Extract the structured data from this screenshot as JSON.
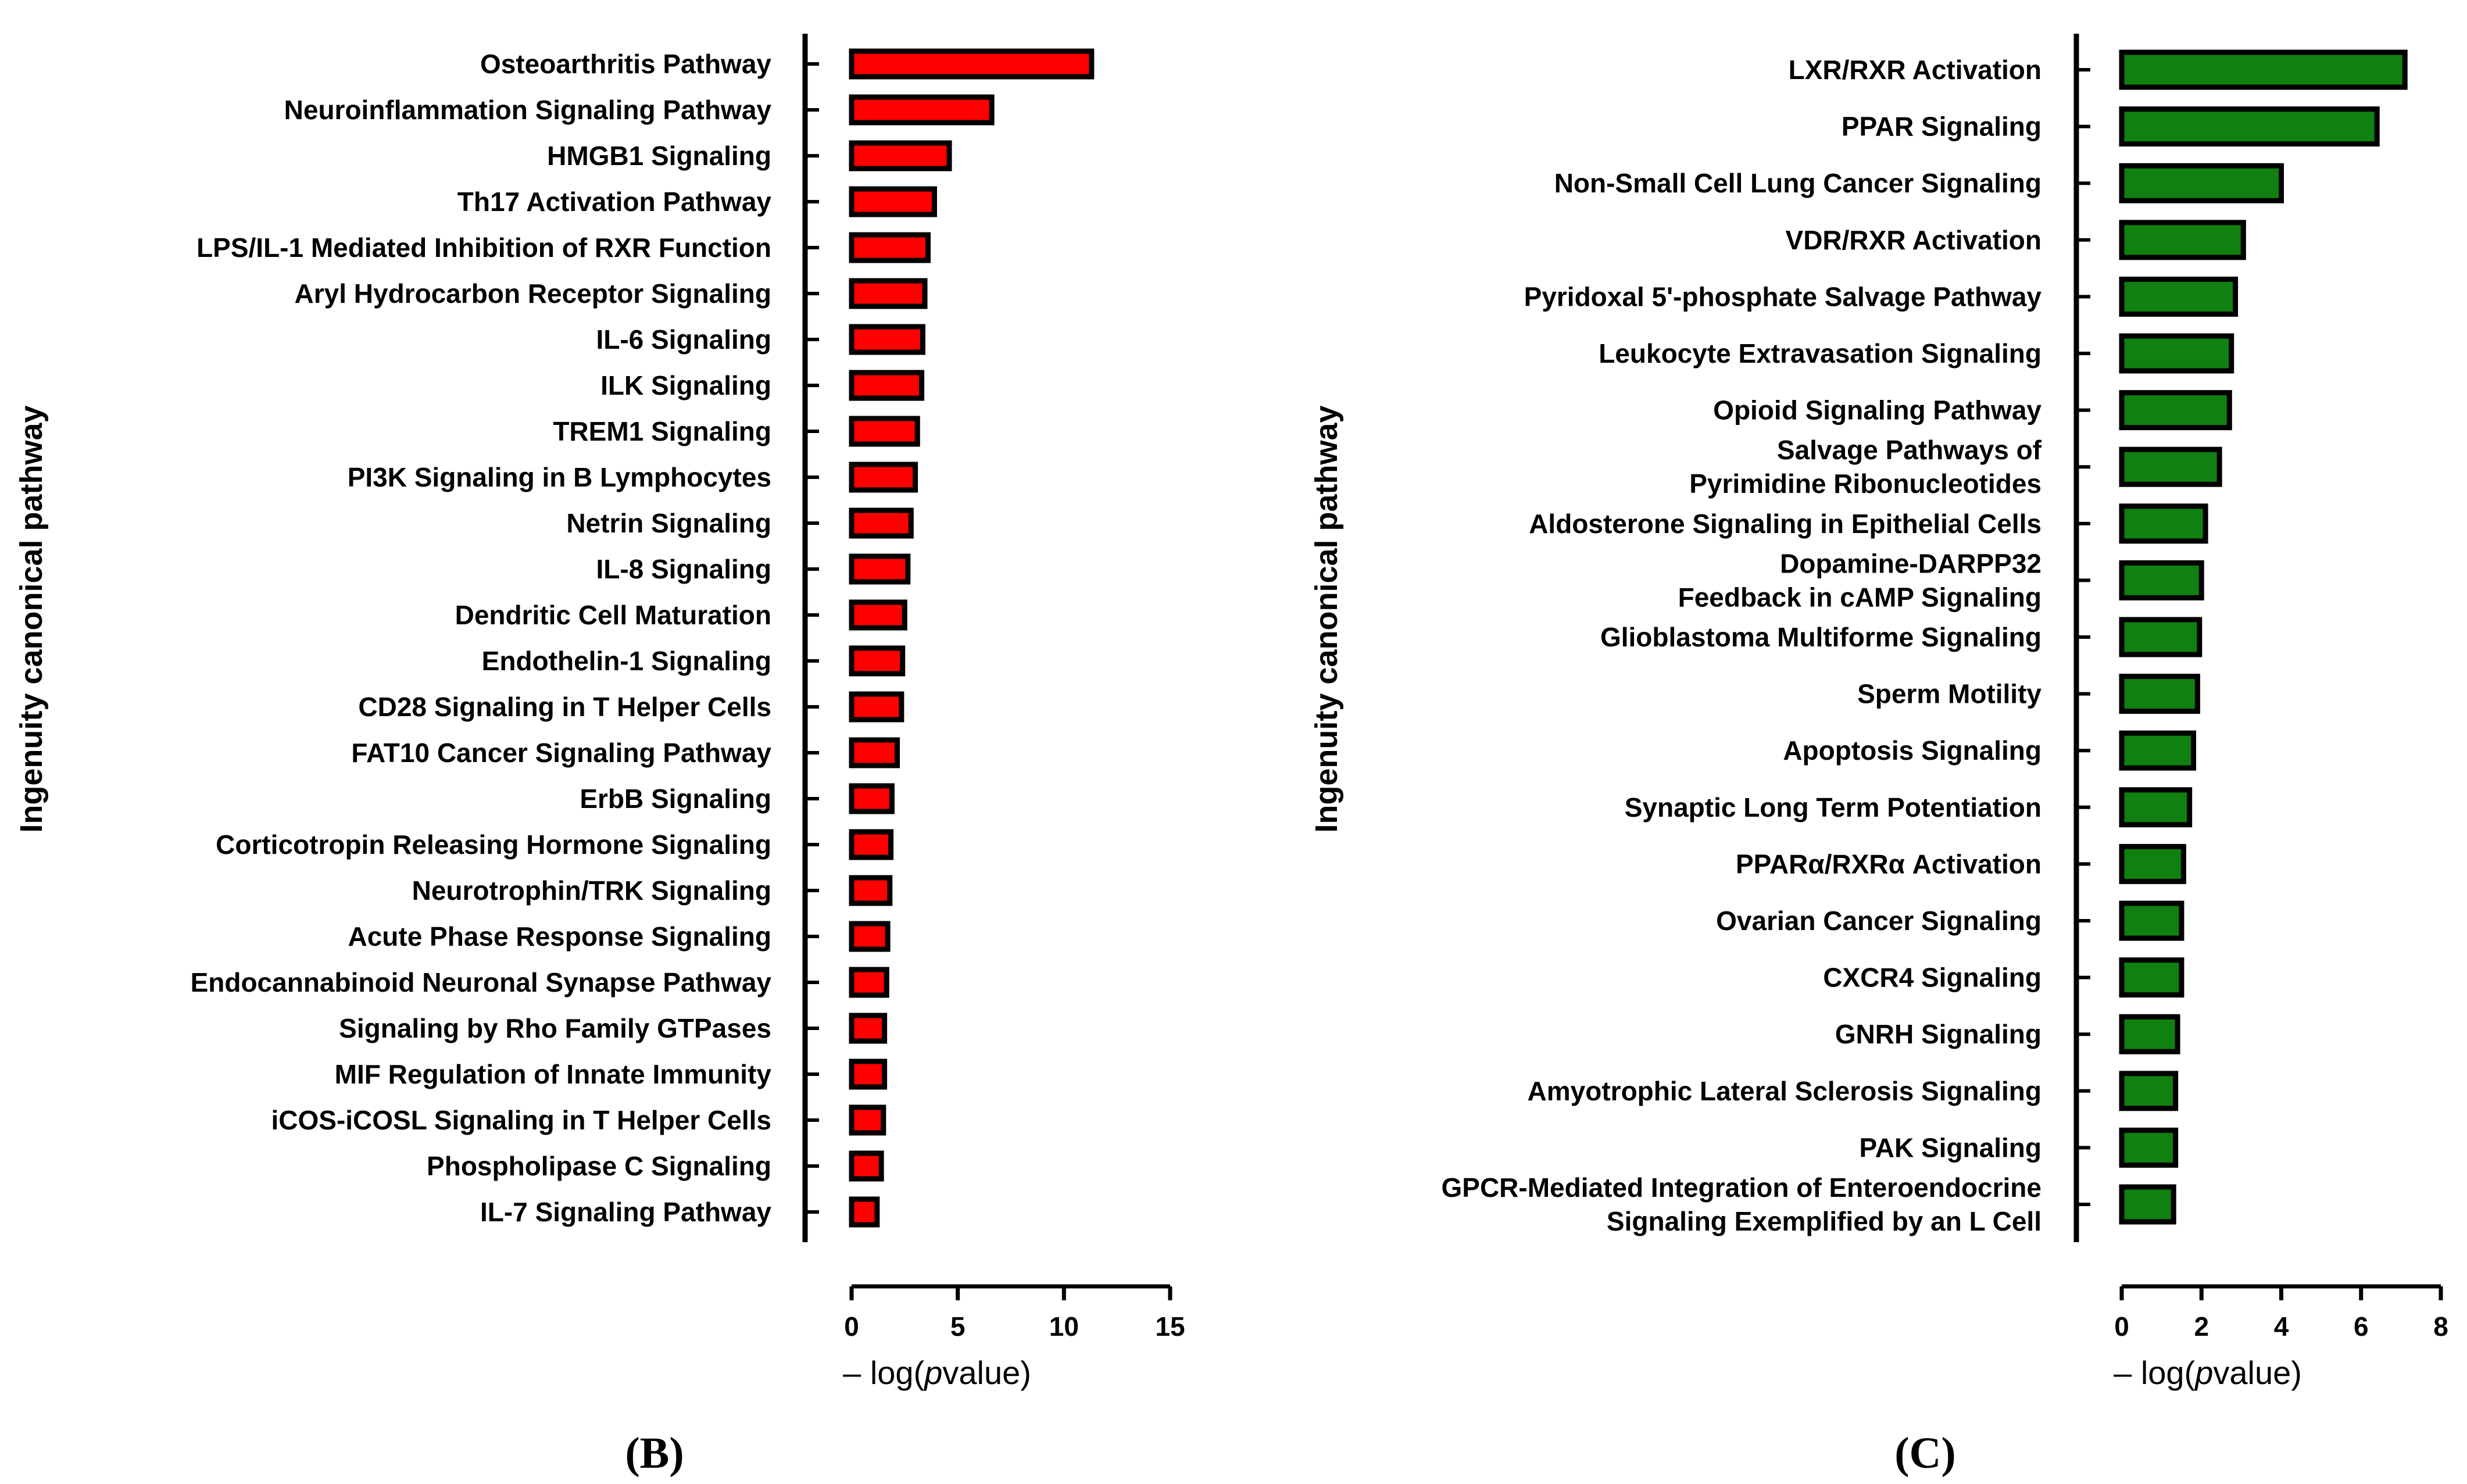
{
  "chart_data": [
    {
      "type": "bar",
      "orientation": "horizontal",
      "panel_label": "(B)",
      "ylabel": "Ingenuity canonical pathway",
      "xlabel_prefix": "– log(",
      "xlabel_italic": "p",
      "xlabel_suffix": "value)",
      "xlim": [
        0,
        15
      ],
      "xticks": [
        0,
        5,
        10,
        15
      ],
      "bar_color": "#ff0000",
      "categories": [
        [
          "Osteoarthritis Pathway"
        ],
        [
          "Neuroinflammation Signaling Pathway"
        ],
        [
          "HMGB1 Signaling"
        ],
        [
          "Th17 Activation Pathway"
        ],
        [
          "LPS/IL-1 Mediated Inhibition of RXR Function"
        ],
        [
          "Aryl Hydrocarbon Receptor Signaling"
        ],
        [
          "IL-6 Signaling"
        ],
        [
          "ILK Signaling"
        ],
        [
          "TREM1 Signaling"
        ],
        [
          "PI3K Signaling in B Lymphocytes"
        ],
        [
          "Netrin Signaling"
        ],
        [
          "IL-8 Signaling"
        ],
        [
          "Dendritic Cell Maturation"
        ],
        [
          "Endothelin-1 Signaling"
        ],
        [
          "CD28 Signaling in T Helper Cells"
        ],
        [
          "FAT10 Cancer Signaling Pathway"
        ],
        [
          "ErbB Signaling"
        ],
        [
          "Corticotropin Releasing Hormone Signaling"
        ],
        [
          "Neurotrophin/TRK Signaling"
        ],
        [
          "Acute Phase Response Signaling"
        ],
        [
          "Endocannabinoid Neuronal Synapse Pathway"
        ],
        [
          "Signaling by Rho Family GTPases"
        ],
        [
          "MIF Regulation of Innate Immunity"
        ],
        [
          "iCOS-iCOSL Signaling in T Helper Cells"
        ],
        [
          "Phospholipase C Signaling"
        ],
        [
          "IL-7 Signaling Pathway"
        ]
      ],
      "values": [
        11.3,
        6.6,
        4.6,
        3.9,
        3.6,
        3.45,
        3.35,
        3.3,
        3.1,
        3.0,
        2.8,
        2.65,
        2.5,
        2.4,
        2.35,
        2.15,
        1.9,
        1.85,
        1.8,
        1.7,
        1.65,
        1.55,
        1.55,
        1.5,
        1.4,
        1.2
      ]
    },
    {
      "type": "bar",
      "orientation": "horizontal",
      "panel_label": "(C)",
      "ylabel": "Ingenuity canonical pathway",
      "xlabel_prefix": "– log(",
      "xlabel_italic": "p",
      "xlabel_suffix": "value)",
      "xlim": [
        0,
        8
      ],
      "xticks": [
        0,
        2,
        4,
        6,
        8
      ],
      "bar_color": "#108010",
      "categories": [
        [
          "LXR/RXR Activation"
        ],
        [
          "PPAR Signaling"
        ],
        [
          "Non-Small Cell Lung Cancer Signaling"
        ],
        [
          "VDR/RXR Activation"
        ],
        [
          "Pyridoxal 5'-phosphate Salvage Pathway"
        ],
        [
          "Leukocyte Extravasation Signaling"
        ],
        [
          "Opioid Signaling Pathway"
        ],
        [
          "Salvage Pathways of",
          "Pyrimidine Ribonucleotides"
        ],
        [
          "Aldosterone Signaling in Epithelial Cells"
        ],
        [
          "Dopamine-DARPP32",
          "Feedback in cAMP Signaling"
        ],
        [
          "Glioblastoma Multiforme Signaling"
        ],
        [
          "Sperm Motility"
        ],
        [
          "Apoptosis Signaling"
        ],
        [
          "Synaptic Long Term Potentiation"
        ],
        [
          "PPARα/RXRα Activation"
        ],
        [
          "Ovarian Cancer Signaling"
        ],
        [
          "CXCR4 Signaling"
        ],
        [
          "GNRH Signaling"
        ],
        [
          "Amyotrophic Lateral Sclerosis Signaling"
        ],
        [
          "PAK Signaling"
        ],
        [
          "GPCR-Mediated Integration of Enteroendocrine",
          "Signaling Exemplified by an L Cell"
        ]
      ],
      "values": [
        7.1,
        6.4,
        4.0,
        3.05,
        2.85,
        2.75,
        2.7,
        2.45,
        2.1,
        2.0,
        1.95,
        1.9,
        1.8,
        1.7,
        1.55,
        1.5,
        1.5,
        1.4,
        1.35,
        1.35,
        1.3
      ]
    }
  ]
}
